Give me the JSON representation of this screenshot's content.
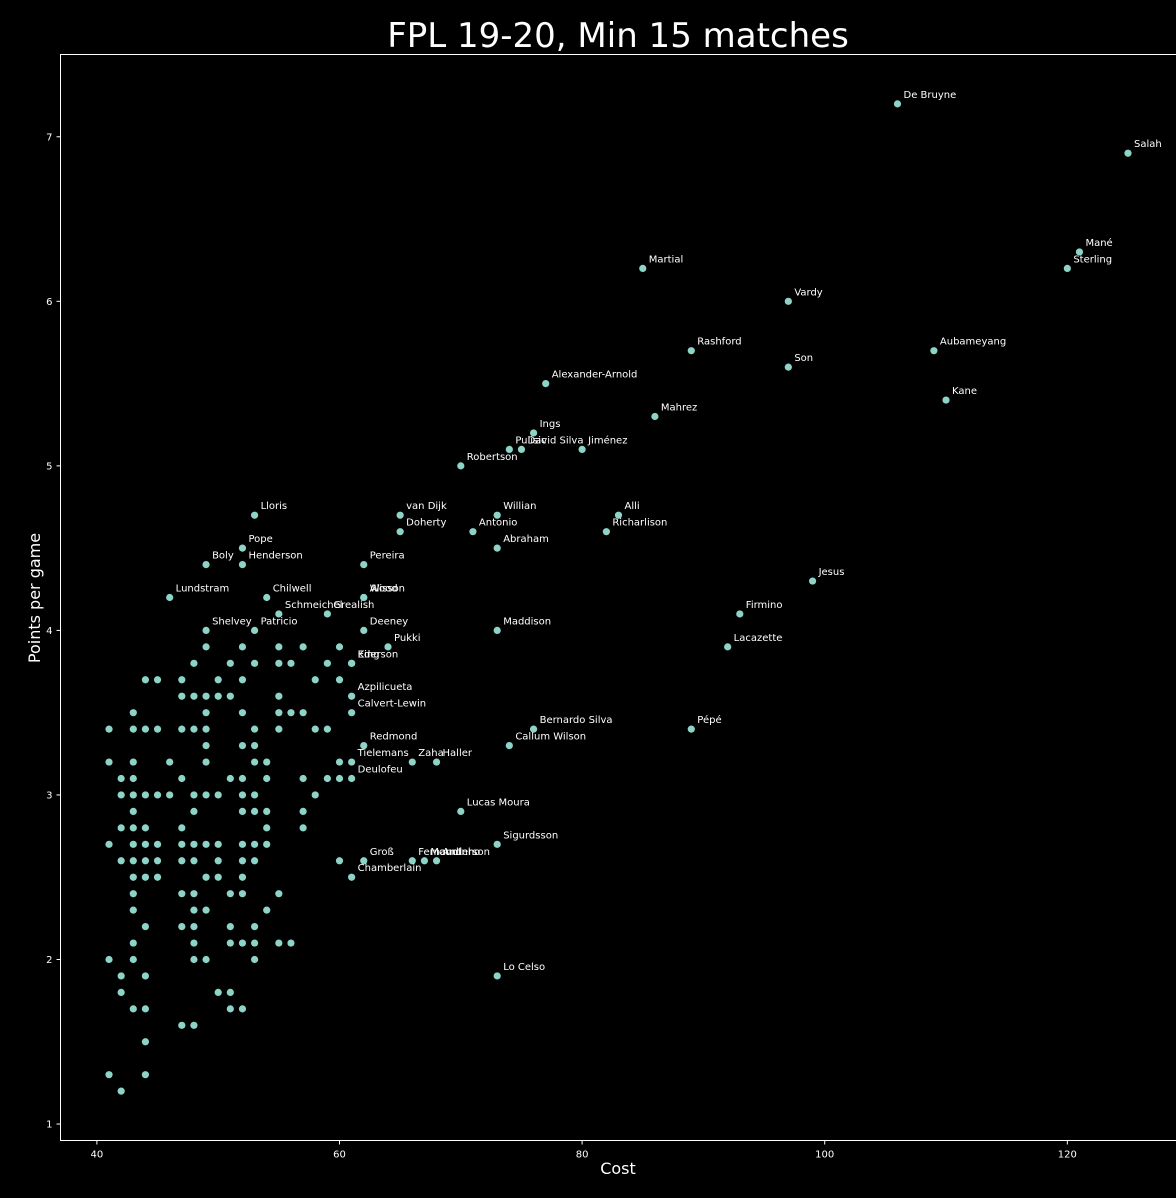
{
  "chart_data": {
    "type": "scatter",
    "title": "FPL 19-20, Min 15 matches",
    "xlabel": "Cost",
    "ylabel": "Points per game",
    "xlim": [
      37,
      129
    ],
    "ylim": [
      0.9,
      7.5
    ],
    "xticks": [
      40,
      60,
      80,
      100,
      120
    ],
    "yticks": [
      1,
      2,
      3,
      4,
      5,
      6,
      7
    ],
    "grid": false,
    "marker_color": "#8dd3c7",
    "background_color": "#000000",
    "text_color": "#ffffff",
    "labeled_points": [
      {
        "label": "De Bruyne",
        "x": 106,
        "y": 7.2
      },
      {
        "label": "Salah",
        "x": 125,
        "y": 6.9
      },
      {
        "label": "Mané",
        "x": 121,
        "y": 6.3
      },
      {
        "label": "Sterling",
        "x": 120,
        "y": 6.2
      },
      {
        "label": "Martial",
        "x": 85,
        "y": 6.2
      },
      {
        "label": "Vardy",
        "x": 97,
        "y": 6.0
      },
      {
        "label": "Rashford",
        "x": 89,
        "y": 5.7
      },
      {
        "label": "Aubameyang",
        "x": 109,
        "y": 5.7
      },
      {
        "label": "Son",
        "x": 97,
        "y": 5.6
      },
      {
        "label": "Alexander-Arnold",
        "x": 77,
        "y": 5.5
      },
      {
        "label": "Kane",
        "x": 110,
        "y": 5.4
      },
      {
        "label": "Mahrez",
        "x": 86,
        "y": 5.3
      },
      {
        "label": "Ings",
        "x": 76,
        "y": 5.2
      },
      {
        "label": "Pulisic",
        "x": 74,
        "y": 5.1
      },
      {
        "label": "David Silva",
        "x": 75,
        "y": 5.1
      },
      {
        "label": "Jiménez",
        "x": 80,
        "y": 5.1
      },
      {
        "label": "Robertson",
        "x": 70,
        "y": 5.0
      },
      {
        "label": "Lloris",
        "x": 53,
        "y": 4.7
      },
      {
        "label": "van Dijk",
        "x": 65,
        "y": 4.7
      },
      {
        "label": "Willian",
        "x": 73,
        "y": 4.7
      },
      {
        "label": "Alli",
        "x": 83,
        "y": 4.7
      },
      {
        "label": "Doherty",
        "x": 65,
        "y": 4.6
      },
      {
        "label": "Antonio",
        "x": 71,
        "y": 4.6
      },
      {
        "label": "Richarlison",
        "x": 82,
        "y": 4.6
      },
      {
        "label": "Pope",
        "x": 52,
        "y": 4.5
      },
      {
        "label": "Abraham",
        "x": 73,
        "y": 4.5
      },
      {
        "label": "Boly",
        "x": 49,
        "y": 4.4
      },
      {
        "label": "Henderson",
        "x": 52,
        "y": 4.4
      },
      {
        "label": "Pereira",
        "x": 62,
        "y": 4.4
      },
      {
        "label": "Jesus",
        "x": 99,
        "y": 4.3
      },
      {
        "label": "Lundstram",
        "x": 46,
        "y": 4.2
      },
      {
        "label": "Chilwell",
        "x": 54,
        "y": 4.2
      },
      {
        "label": "Alisson",
        "x": 62,
        "y": 4.2
      },
      {
        "label": "Wood",
        "x": 62,
        "y": 4.2
      },
      {
        "label": "Schmeichel",
        "x": 55,
        "y": 4.1
      },
      {
        "label": "Grealish",
        "x": 59,
        "y": 4.1
      },
      {
        "label": "Firmino",
        "x": 93,
        "y": 4.1
      },
      {
        "label": "Shelvey",
        "x": 49,
        "y": 4.0
      },
      {
        "label": "Patricio",
        "x": 53,
        "y": 4.0
      },
      {
        "label": "Deeney",
        "x": 62,
        "y": 4.0
      },
      {
        "label": "Maddison",
        "x": 73,
        "y": 4.0
      },
      {
        "label": "Pukki",
        "x": 64,
        "y": 3.9
      },
      {
        "label": "Lacazette",
        "x": 92,
        "y": 3.9
      },
      {
        "label": "Ederson",
        "x": 61,
        "y": 3.8
      },
      {
        "label": "King",
        "x": 61,
        "y": 3.8
      },
      {
        "label": "Azpilicueta",
        "x": 61,
        "y": 3.6
      },
      {
        "label": "Calvert-Lewin",
        "x": 61,
        "y": 3.5
      },
      {
        "label": "Bernardo Silva",
        "x": 76,
        "y": 3.4
      },
      {
        "label": "Pépé",
        "x": 89,
        "y": 3.4
      },
      {
        "label": "Redmond",
        "x": 62,
        "y": 3.3
      },
      {
        "label": "Callum Wilson",
        "x": 74,
        "y": 3.3
      },
      {
        "label": "Tielemans",
        "x": 61,
        "y": 3.2
      },
      {
        "label": "Zaha",
        "x": 66,
        "y": 3.2
      },
      {
        "label": "Haller",
        "x": 68,
        "y": 3.2
      },
      {
        "label": "Deulofeu",
        "x": 61,
        "y": 3.1
      },
      {
        "label": "Lucas Moura",
        "x": 70,
        "y": 2.9
      },
      {
        "label": "Sigurdsson",
        "x": 73,
        "y": 2.7
      },
      {
        "label": "Groß",
        "x": 62,
        "y": 2.6
      },
      {
        "label": "Fernandinho",
        "x": 66,
        "y": 2.6
      },
      {
        "label": "Mount",
        "x": 67,
        "y": 2.6
      },
      {
        "label": "Anderson",
        "x": 68,
        "y": 2.6
      },
      {
        "label": "Chamberlain",
        "x": 61,
        "y": 2.5
      },
      {
        "label": "Lo Celso",
        "x": 73,
        "y": 1.9
      }
    ],
    "unlabeled_points": [
      [
        41,
        3.4
      ],
      [
        41,
        3.2
      ],
      [
        41,
        2.7
      ],
      [
        41,
        2.0
      ],
      [
        41,
        1.3
      ],
      [
        42,
        3.1
      ],
      [
        42,
        3.0
      ],
      [
        42,
        2.8
      ],
      [
        42,
        2.6
      ],
      [
        42,
        1.9
      ],
      [
        42,
        1.8
      ],
      [
        42,
        1.2
      ],
      [
        43,
        3.5
      ],
      [
        43,
        3.4
      ],
      [
        43,
        3.2
      ],
      [
        43,
        3.1
      ],
      [
        43,
        3.0
      ],
      [
        43,
        2.9
      ],
      [
        43,
        2.8
      ],
      [
        43,
        2.7
      ],
      [
        43,
        2.6
      ],
      [
        43,
        2.5
      ],
      [
        43,
        2.4
      ],
      [
        43,
        2.3
      ],
      [
        43,
        2.1
      ],
      [
        43,
        2.0
      ],
      [
        43,
        1.7
      ],
      [
        44,
        3.7
      ],
      [
        44,
        3.4
      ],
      [
        44,
        3.0
      ],
      [
        44,
        2.8
      ],
      [
        44,
        2.7
      ],
      [
        44,
        2.6
      ],
      [
        44,
        2.5
      ],
      [
        44,
        2.2
      ],
      [
        44,
        1.9
      ],
      [
        44,
        1.7
      ],
      [
        44,
        1.5
      ],
      [
        44,
        1.3
      ],
      [
        45,
        3.7
      ],
      [
        45,
        3.4
      ],
      [
        45,
        3.0
      ],
      [
        45,
        2.7
      ],
      [
        45,
        2.6
      ],
      [
        45,
        2.5
      ],
      [
        46,
        3.2
      ],
      [
        46,
        3.0
      ],
      [
        47,
        3.7
      ],
      [
        47,
        3.6
      ],
      [
        47,
        3.4
      ],
      [
        47,
        3.1
      ],
      [
        47,
        2.8
      ],
      [
        47,
        2.7
      ],
      [
        47,
        2.6
      ],
      [
        47,
        2.4
      ],
      [
        47,
        2.2
      ],
      [
        47,
        1.6
      ],
      [
        48,
        3.8
      ],
      [
        48,
        3.6
      ],
      [
        48,
        3.4
      ],
      [
        48,
        3.0
      ],
      [
        48,
        2.9
      ],
      [
        48,
        2.7
      ],
      [
        48,
        2.6
      ],
      [
        48,
        2.4
      ],
      [
        48,
        2.3
      ],
      [
        48,
        2.2
      ],
      [
        48,
        2.1
      ],
      [
        48,
        2.0
      ],
      [
        48,
        1.6
      ],
      [
        49,
        3.9
      ],
      [
        49,
        3.6
      ],
      [
        49,
        3.5
      ],
      [
        49,
        3.4
      ],
      [
        49,
        3.3
      ],
      [
        49,
        3.2
      ],
      [
        49,
        3.0
      ],
      [
        49,
        2.7
      ],
      [
        49,
        2.5
      ],
      [
        49,
        2.3
      ],
      [
        49,
        2.0
      ],
      [
        50,
        3.7
      ],
      [
        50,
        3.6
      ],
      [
        50,
        3.0
      ],
      [
        50,
        2.7
      ],
      [
        50,
        2.6
      ],
      [
        50,
        2.5
      ],
      [
        50,
        1.8
      ],
      [
        51,
        3.8
      ],
      [
        51,
        3.6
      ],
      [
        51,
        3.1
      ],
      [
        51,
        2.4
      ],
      [
        51,
        2.2
      ],
      [
        51,
        2.1
      ],
      [
        51,
        1.8
      ],
      [
        51,
        1.7
      ],
      [
        52,
        3.9
      ],
      [
        52,
        3.7
      ],
      [
        52,
        3.5
      ],
      [
        52,
        3.3
      ],
      [
        52,
        3.1
      ],
      [
        52,
        3.0
      ],
      [
        52,
        2.9
      ],
      [
        52,
        2.7
      ],
      [
        52,
        2.6
      ],
      [
        52,
        2.5
      ],
      [
        52,
        2.4
      ],
      [
        52,
        2.1
      ],
      [
        52,
        1.7
      ],
      [
        53,
        3.8
      ],
      [
        53,
        3.4
      ],
      [
        53,
        3.3
      ],
      [
        53,
        3.2
      ],
      [
        53,
        3.0
      ],
      [
        53,
        2.9
      ],
      [
        53,
        2.7
      ],
      [
        53,
        2.6
      ],
      [
        53,
        2.2
      ],
      [
        53,
        2.1
      ],
      [
        53,
        2.0
      ],
      [
        54,
        3.2
      ],
      [
        54,
        3.1
      ],
      [
        54,
        2.9
      ],
      [
        54,
        2.8
      ],
      [
        54,
        2.7
      ],
      [
        54,
        2.3
      ],
      [
        55,
        3.9
      ],
      [
        55,
        3.8
      ],
      [
        55,
        3.6
      ],
      [
        55,
        3.5
      ],
      [
        55,
        3.4
      ],
      [
        55,
        2.4
      ],
      [
        55,
        2.1
      ],
      [
        56,
        3.8
      ],
      [
        56,
        3.5
      ],
      [
        56,
        2.1
      ],
      [
        57,
        3.9
      ],
      [
        57,
        3.5
      ],
      [
        57,
        3.1
      ],
      [
        57,
        2.9
      ],
      [
        57,
        2.8
      ],
      [
        58,
        3.7
      ],
      [
        58,
        3.4
      ],
      [
        58,
        3.0
      ],
      [
        59,
        3.8
      ],
      [
        59,
        3.4
      ],
      [
        59,
        3.1
      ],
      [
        60,
        3.9
      ],
      [
        60,
        3.7
      ],
      [
        60,
        3.2
      ],
      [
        60,
        3.1
      ],
      [
        60,
        2.6
      ]
    ]
  }
}
